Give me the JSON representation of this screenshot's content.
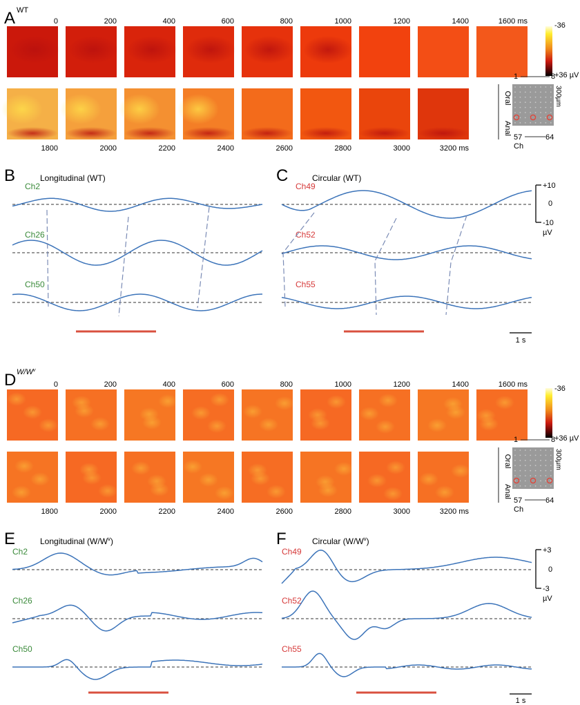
{
  "panelA": {
    "letter": "A",
    "genotype": "WT",
    "topTimes": [
      "0",
      "200",
      "400",
      "600",
      "800",
      "1000",
      "1200",
      "1400",
      "1600 ms"
    ],
    "bottomTimes": [
      "1800",
      "2000",
      "2200",
      "2400",
      "2600",
      "2800",
      "3000",
      "3200 ms"
    ],
    "colorbarTop": "-36",
    "colorbarBottom": "+36 µV",
    "oral": "Oral",
    "anal": "Anal",
    "electrode": {
      "ch1": "1",
      "ch8": "8",
      "ch57": "57",
      "ch64": "64",
      "ch": "Ch",
      "scale": "300µm"
    },
    "baseHue": 20,
    "hueRange": 28,
    "lightness": [
      48,
      56
    ]
  },
  "panelB": {
    "letter": "B",
    "title": "Longitudinal (WT)",
    "traces": [
      {
        "label": "Ch2",
        "color": "#3a8a3a"
      },
      {
        "label": "Ch26",
        "color": "#3a8a3a"
      },
      {
        "label": "Ch50",
        "color": "#3a8a3a"
      }
    ]
  },
  "panelC": {
    "letter": "C",
    "title": "Circular (WT)",
    "traces": [
      {
        "label": "Ch49",
        "color": "#d63a3a"
      },
      {
        "label": "Ch52",
        "color": "#d63a3a"
      },
      {
        "label": "Ch55",
        "color": "#d63a3a"
      }
    ],
    "scaleTop": "+10",
    "scaleMid": "0",
    "scaleBottom": "-10",
    "scaleUnit": "µV",
    "timeScale": "1 s"
  },
  "panelD": {
    "letter": "D",
    "genotype": "W/W",
    "genotypeSup": "v",
    "topTimes": [
      "0",
      "200",
      "400",
      "600",
      "800",
      "1000",
      "1200",
      "1400",
      "1600 ms"
    ],
    "bottomTimes": [
      "1800",
      "2000",
      "2200",
      "2400",
      "2600",
      "2800",
      "3000",
      "3200 ms"
    ],
    "colorbarTop": "-36",
    "colorbarBottom": "+36 µV",
    "oral": "Oral",
    "anal": "Anal",
    "electrode": {
      "ch1": "1",
      "ch8": "8",
      "ch57": "57",
      "ch64": "64",
      "ch": "Ch",
      "scale": "300µm"
    }
  },
  "panelE": {
    "letter": "E",
    "title": "Longitudinal (W/W",
    "titleSup": "v",
    "titleEnd": ")",
    "traces": [
      {
        "label": "Ch2",
        "color": "#3a8a3a"
      },
      {
        "label": "Ch26",
        "color": "#3a8a3a"
      },
      {
        "label": "Ch50",
        "color": "#3a8a3a"
      }
    ]
  },
  "panelF": {
    "letter": "F",
    "title": "Circular (W/W",
    "titleSup": "v",
    "titleEnd": ")",
    "traces": [
      {
        "label": "Ch49",
        "color": "#d63a3a"
      },
      {
        "label": "Ch52",
        "color": "#d63a3a"
      },
      {
        "label": "Ch55",
        "color": "#d63a3a"
      }
    ],
    "scaleTop": "+3",
    "scaleMid": "0",
    "scaleBottom": "-3",
    "scaleUnit": "µV",
    "timeScale": "1 s"
  },
  "colors": {
    "trace": "#3b73b9",
    "baseline": "#333333",
    "redBar": "#d9503f",
    "phaseLink": "#7a8bb5"
  }
}
